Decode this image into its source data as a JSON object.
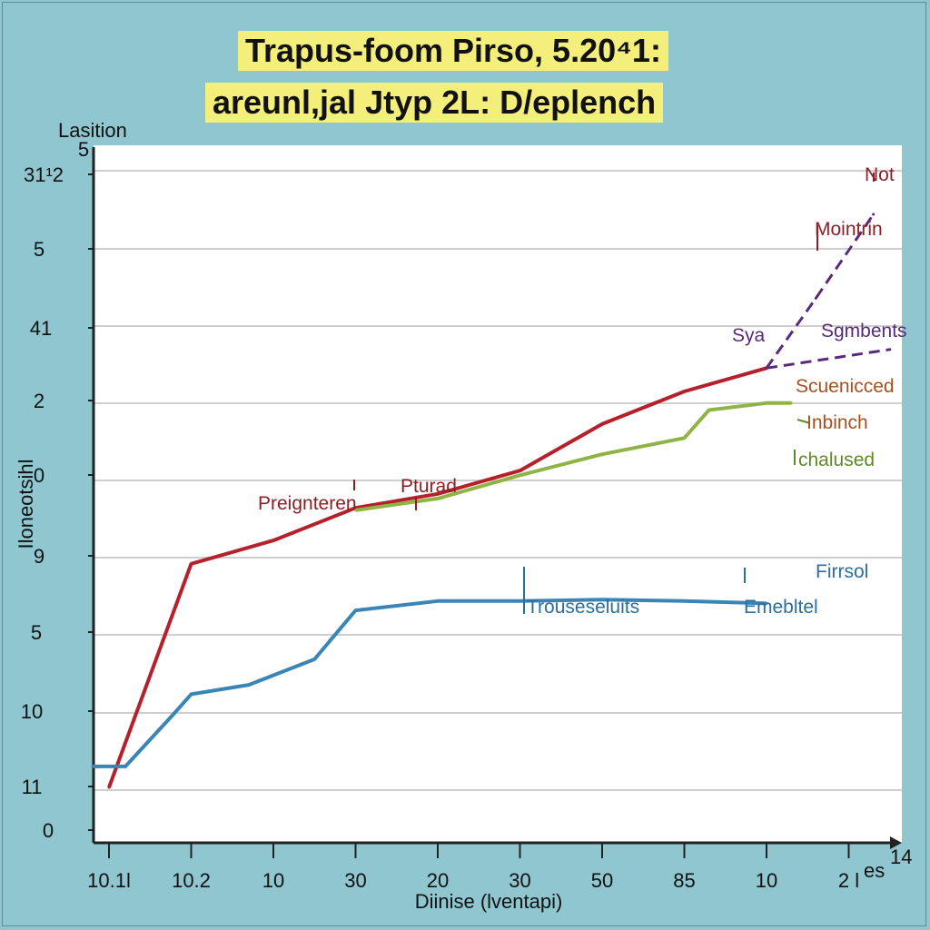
{
  "chart_data": {
    "type": "line",
    "title": "Trapus-foom Pirso, 5.20⁴1:",
    "subtitle": "areunl,jal Jtyp 2L: D/eplench",
    "ylabel_top": "Lasition",
    "ylabel_side": "Iloneotsihl",
    "xlabel": "Diinise (lventapi)",
    "x_categories": [
      "10.1l",
      "10.2",
      "10",
      "30",
      "20",
      "30",
      "50",
      "85",
      "10",
      "2 l"
    ],
    "x_corner_label": "14",
    "x_tick_extra": "es",
    "y_tick_labels": [
      "31¹2",
      "5",
      "41",
      "2",
      "0",
      "9",
      "5",
      "10",
      "11",
      "0"
    ],
    "y_corner_label": "5",
    "grid": true,
    "series": [
      {
        "name": "Preignteren",
        "color": "#b5202a",
        "x": [
          0,
          1,
          2,
          3,
          4,
          5,
          6,
          7,
          8
        ],
        "y": [
          0.6,
          5.4,
          5.9,
          6.6,
          6.9,
          7.4,
          8.4,
          9.1,
          9.6
        ]
      },
      {
        "name": "Pturad",
        "color": "#8fb445",
        "x": [
          3,
          4,
          5,
          6,
          7,
          7.3,
          8,
          8.3
        ],
        "y": [
          6.55,
          6.8,
          7.3,
          7.75,
          8.1,
          8.7,
          8.85,
          8.85
        ]
      },
      {
        "name": "Trouseseluits",
        "color": "#3a85b8",
        "x": [
          -0.2,
          0.2,
          0.8,
          1,
          1.7,
          2.5,
          3,
          4,
          5,
          6,
          7,
          8
        ],
        "y": [
          1.05,
          1.05,
          2.2,
          2.6,
          2.8,
          3.35,
          4.4,
          4.6,
          4.6,
          4.63,
          4.6,
          4.55
        ]
      },
      {
        "name": "Mointrin",
        "color": "#5a2a7a",
        "dashed": true,
        "x": [
          8,
          8.6,
          9.3
        ],
        "y": [
          9.6,
          11.1,
          12.9
        ]
      },
      {
        "name": "Sgmbents",
        "color": "#5a2a7a",
        "dashed": true,
        "x": [
          8,
          9.5
        ],
        "y": [
          9.6,
          10
        ]
      }
    ],
    "annotations": [
      {
        "text": "Not",
        "color": "#8b1f26"
      },
      {
        "text": "Mointrin",
        "color": "#8b1f26"
      },
      {
        "text": "Sya",
        "color": "#5a2a7a"
      },
      {
        "text": "Sgmbents",
        "color": "#5a2a7a"
      },
      {
        "text": "Scuenicced",
        "color": "#a5521e"
      },
      {
        "text": "Inbinch",
        "color": "#a5521e"
      },
      {
        "text": "chalused",
        "color": "#5e8a2a"
      },
      {
        "text": "Preignteren",
        "color": "#8b1f26"
      },
      {
        "text": "Pturad",
        "color": "#8b1f26"
      },
      {
        "text": "Firrsol",
        "color": "#2a6f9e"
      },
      {
        "text": "Trouseseluits",
        "color": "#2a6f9e"
      },
      {
        "text": "Emebltel",
        "color": "#2a6f9e"
      }
    ]
  }
}
